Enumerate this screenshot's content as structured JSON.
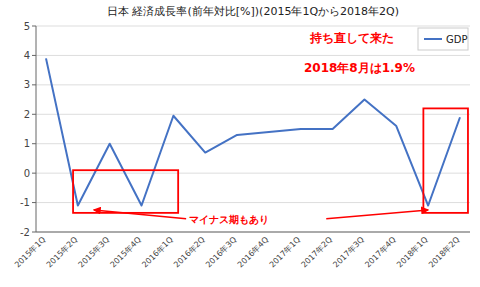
{
  "chart_data": {
    "type": "line",
    "title": "日本 経済成長率(前年対比[%])(2015年1Qから2018年2Q)",
    "categories": [
      "2015年1Q",
      "2015年2Q",
      "2015年3Q",
      "2015年4Q",
      "2016年1Q",
      "2016年2Q",
      "2016年3Q",
      "2016年4Q",
      "2017年1Q",
      "2017年2Q",
      "2017年3Q",
      "2017年4Q",
      "2018年1Q",
      "2018年2Q"
    ],
    "series": [
      {
        "name": "GDP",
        "color": "#4472c4",
        "values": [
          3.9,
          -1.1,
          1.0,
          -1.1,
          1.95,
          0.7,
          1.3,
          1.4,
          1.5,
          1.5,
          2.5,
          1.6,
          -1.1,
          1.9
        ]
      }
    ],
    "ylim": [
      -2,
      5
    ],
    "yticks": [
      -2,
      -1,
      0,
      1,
      2,
      3,
      4,
      5
    ],
    "grid": true,
    "legend": "upper right",
    "annotations": [
      "持ち直して来た",
      "2018年8月は1.9%",
      "マイナス期もあり"
    ]
  }
}
